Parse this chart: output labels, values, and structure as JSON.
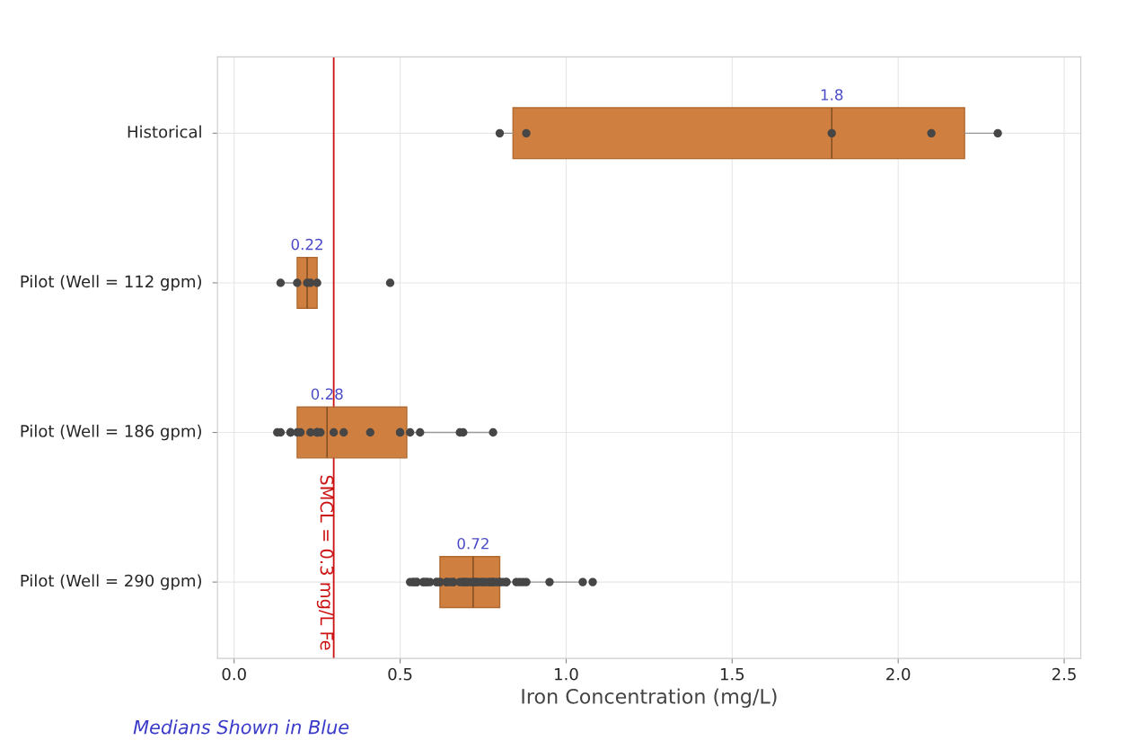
{
  "chart_data": {
    "type": "box",
    "orientation": "horizontal",
    "categories": [
      "Historical",
      "Pilot (Well = 112 gpm)",
      "Pilot (Well = 186 gpm)",
      "Pilot (Well = 290 gpm)"
    ],
    "xlabel": "Iron Concentration (mg/L)",
    "xlim": [
      -0.05,
      2.55
    ],
    "xticks": [
      {
        "value": 0,
        "label": "0.0"
      },
      0.5,
      {
        "value": 1,
        "label": "1.0"
      },
      1.5,
      {
        "value": 2,
        "label": "2.0"
      },
      2.5
    ],
    "grid": true,
    "legend": false,
    "series": [
      {
        "type": "box",
        "color": "#cf7f3f",
        "boxes": [
          {
            "low": 0.8,
            "q1": 0.84,
            "median": 1.8,
            "q3": 2.2,
            "high": 2.3
          },
          {
            "low": 0.14,
            "q1": 0.19,
            "median": 0.22,
            "q3": 0.25,
            "high": 0.25
          },
          {
            "low": 0.13,
            "q1": 0.19,
            "median": 0.28,
            "q3": 0.52,
            "high": 0.78
          },
          {
            "low": 0.53,
            "q1": 0.62,
            "median": 0.72,
            "q3": 0.8,
            "high": 1.05
          }
        ]
      },
      {
        "type": "scatter",
        "color": "#464646",
        "marker": "circle",
        "x": [
          "Historical",
          "Historical",
          "Historical",
          "Historical",
          "Historical",
          "Pilot (Well = 112 gpm)",
          "Pilot (Well = 112 gpm)",
          "Pilot (Well = 112 gpm)",
          "Pilot (Well = 112 gpm)",
          "Pilot (Well = 112 gpm)",
          "Pilot (Well = 112 gpm)",
          "Pilot (Well = 186 gpm)",
          "Pilot (Well = 186 gpm)",
          "Pilot (Well = 186 gpm)",
          "Pilot (Well = 186 gpm)",
          "Pilot (Well = 186 gpm)",
          "Pilot (Well = 186 gpm)",
          "Pilot (Well = 186 gpm)",
          "Pilot (Well = 186 gpm)",
          "Pilot (Well = 186 gpm)",
          "Pilot (Well = 186 gpm)",
          "Pilot (Well = 186 gpm)",
          "Pilot (Well = 186 gpm)",
          "Pilot (Well = 186 gpm)",
          "Pilot (Well = 186 gpm)",
          "Pilot (Well = 186 gpm)",
          "Pilot (Well = 186 gpm)",
          "Pilot (Well = 186 gpm)",
          "Pilot (Well = 186 gpm)",
          "Pilot (Well = 186 gpm)",
          "Pilot (Well = 186 gpm)",
          "Pilot (Well = 186 gpm)",
          "Pilot (Well = 290 gpm)",
          "Pilot (Well = 290 gpm)",
          "Pilot (Well = 290 gpm)",
          "Pilot (Well = 290 gpm)",
          "Pilot (Well = 290 gpm)",
          "Pilot (Well = 290 gpm)",
          "Pilot (Well = 290 gpm)",
          "Pilot (Well = 290 gpm)",
          "Pilot (Well = 290 gpm)",
          "Pilot (Well = 290 gpm)",
          "Pilot (Well = 290 gpm)",
          "Pilot (Well = 290 gpm)",
          "Pilot (Well = 290 gpm)",
          "Pilot (Well = 290 gpm)",
          "Pilot (Well = 290 gpm)",
          "Pilot (Well = 290 gpm)",
          "Pilot (Well = 290 gpm)",
          "Pilot (Well = 290 gpm)",
          "Pilot (Well = 290 gpm)",
          "Pilot (Well = 290 gpm)",
          "Pilot (Well = 290 gpm)",
          "Pilot (Well = 290 gpm)",
          "Pilot (Well = 290 gpm)",
          "Pilot (Well = 290 gpm)",
          "Pilot (Well = 290 gpm)",
          "Pilot (Well = 290 gpm)",
          "Pilot (Well = 290 gpm)",
          "Pilot (Well = 290 gpm)",
          "Pilot (Well = 290 gpm)",
          "Pilot (Well = 290 gpm)",
          "Pilot (Well = 290 gpm)",
          "Pilot (Well = 290 gpm)",
          "Pilot (Well = 290 gpm)",
          "Pilot (Well = 290 gpm)",
          "Pilot (Well = 290 gpm)",
          "Pilot (Well = 290 gpm)",
          "Pilot (Well = 290 gpm)",
          "Pilot (Well = 290 gpm)",
          "Pilot (Well = 290 gpm)",
          "Pilot (Well = 290 gpm)",
          "Pilot (Well = 290 gpm)",
          "Pilot (Well = 290 gpm)",
          "Pilot (Well = 290 gpm)",
          "Pilot (Well = 290 gpm)",
          "Pilot (Well = 290 gpm)",
          "Pilot (Well = 290 gpm)",
          "Pilot (Well = 290 gpm)",
          "Pilot (Well = 290 gpm)",
          "Pilot (Well = 290 gpm)",
          "Pilot (Well = 290 gpm)"
        ],
        "values": [
          0.8,
          0.88,
          1.8,
          2.1,
          2.3,
          0.14,
          0.19,
          0.22,
          0.23,
          0.25,
          0.47,
          0.13,
          0.14,
          0.17,
          0.17,
          0.19,
          0.2,
          0.23,
          0.25,
          0.25,
          0.25,
          0.26,
          0.3,
          0.33,
          0.41,
          0.5,
          0.5,
          0.53,
          0.56,
          0.68,
          0.69,
          0.78,
          0.53,
          0.54,
          0.54,
          0.55,
          0.55,
          0.57,
          0.57,
          0.58,
          0.58,
          0.59,
          0.61,
          0.61,
          0.62,
          0.62,
          0.64,
          0.64,
          0.65,
          0.66,
          0.66,
          0.68,
          0.69,
          0.69,
          0.7,
          0.7,
          0.71,
          0.72,
          0.72,
          0.73,
          0.73,
          0.74,
          0.75,
          0.75,
          0.76,
          0.77,
          0.77,
          0.78,
          0.78,
          0.79,
          0.8,
          0.8,
          0.81,
          0.82,
          0.82,
          0.85,
          0.86,
          0.87,
          0.88,
          0.95,
          1.05,
          1.08
        ]
      }
    ],
    "ref_lines": [
      {
        "axis": "x",
        "value": 0.3,
        "label": "SMCL = 0.3 mg/L Fe",
        "color": "#cc1111",
        "line_style": "solid"
      }
    ],
    "annotations": [
      "1.8",
      "0.22",
      "0.28",
      "0.72",
      "Medians Shown in Blue"
    ]
  }
}
